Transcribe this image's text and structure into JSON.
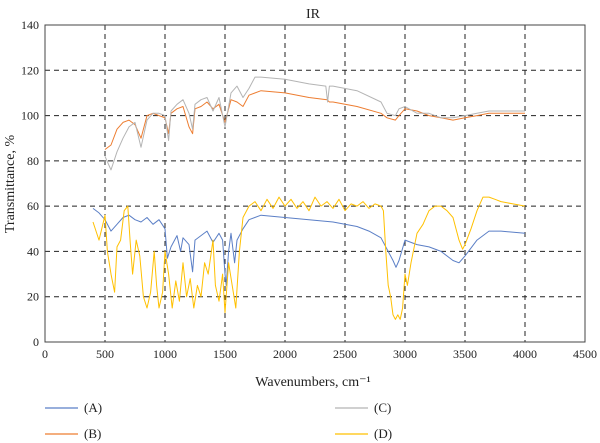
{
  "chart_data": {
    "type": "line",
    "title": "IR",
    "xlabel": "Wavenumbers, cm⁻¹",
    "ylabel": "Transmittance, %",
    "xlim": [
      0,
      4500
    ],
    "ylim": [
      0,
      140
    ],
    "xticks": [
      "0",
      "500",
      "1000",
      "1500",
      "2000",
      "2500",
      "3000",
      "3500",
      "4000",
      "4500"
    ],
    "yticks": [
      "0",
      "20",
      "40",
      "60",
      "80",
      "100",
      "120",
      "140"
    ],
    "grid": "dashed",
    "legend_position": "bottom",
    "series": [
      {
        "name": "(A)",
        "color": "#5b7fc6",
        "points": [
          [
            400,
            59
          ],
          [
            450,
            57
          ],
          [
            500,
            54
          ],
          [
            550,
            49
          ],
          [
            600,
            52
          ],
          [
            650,
            55
          ],
          [
            700,
            56
          ],
          [
            750,
            54
          ],
          [
            800,
            53
          ],
          [
            850,
            55
          ],
          [
            900,
            52
          ],
          [
            950,
            54
          ],
          [
            1000,
            50
          ],
          [
            1020,
            37
          ],
          [
            1050,
            42
          ],
          [
            1100,
            47
          ],
          [
            1130,
            40
          ],
          [
            1150,
            46
          ],
          [
            1200,
            43
          ],
          [
            1230,
            31
          ],
          [
            1250,
            45
          ],
          [
            1300,
            47
          ],
          [
            1350,
            49
          ],
          [
            1400,
            44
          ],
          [
            1450,
            48
          ],
          [
            1480,
            45
          ],
          [
            1500,
            30
          ],
          [
            1510,
            25
          ],
          [
            1530,
            40
          ],
          [
            1550,
            48
          ],
          [
            1580,
            35
          ],
          [
            1600,
            45
          ],
          [
            1650,
            50
          ],
          [
            1700,
            54
          ],
          [
            1800,
            56
          ],
          [
            2000,
            55
          ],
          [
            2200,
            54
          ],
          [
            2400,
            53
          ],
          [
            2600,
            51
          ],
          [
            2700,
            49
          ],
          [
            2800,
            46
          ],
          [
            2850,
            41
          ],
          [
            2900,
            36
          ],
          [
            2925,
            33
          ],
          [
            2950,
            36
          ],
          [
            3000,
            45
          ],
          [
            3100,
            43
          ],
          [
            3200,
            42
          ],
          [
            3300,
            40
          ],
          [
            3400,
            36
          ],
          [
            3450,
            35
          ],
          [
            3500,
            38
          ],
          [
            3600,
            45
          ],
          [
            3700,
            49
          ],
          [
            3800,
            49
          ],
          [
            4000,
            48
          ]
        ]
      },
      {
        "name": "(B)",
        "color": "#ed7d31",
        "points": [
          [
            500,
            85
          ],
          [
            550,
            87
          ],
          [
            600,
            94
          ],
          [
            650,
            97
          ],
          [
            700,
            98
          ],
          [
            750,
            96
          ],
          [
            800,
            90
          ],
          [
            850,
            100
          ],
          [
            900,
            101
          ],
          [
            950,
            100
          ],
          [
            1000,
            99
          ],
          [
            1030,
            92
          ],
          [
            1050,
            101
          ],
          [
            1100,
            103
          ],
          [
            1150,
            104
          ],
          [
            1200,
            95
          ],
          [
            1230,
            92
          ],
          [
            1250,
            103
          ],
          [
            1300,
            104
          ],
          [
            1350,
            106
          ],
          [
            1400,
            103
          ],
          [
            1450,
            105
          ],
          [
            1500,
            97
          ],
          [
            1550,
            107
          ],
          [
            1600,
            106
          ],
          [
            1650,
            104
          ],
          [
            1700,
            109
          ],
          [
            1800,
            111
          ],
          [
            2000,
            110
          ],
          [
            2200,
            108
          ],
          [
            2350,
            107
          ],
          [
            2370,
            106
          ],
          [
            2400,
            106
          ],
          [
            2600,
            104
          ],
          [
            2800,
            101
          ],
          [
            2850,
            99
          ],
          [
            2920,
            98
          ],
          [
            2950,
            100
          ],
          [
            3000,
            103
          ],
          [
            3100,
            102
          ],
          [
            3200,
            100
          ],
          [
            3300,
            99
          ],
          [
            3400,
            98
          ],
          [
            3500,
            99
          ],
          [
            3600,
            100
          ],
          [
            3700,
            101
          ],
          [
            3800,
            101
          ],
          [
            4000,
            101
          ]
        ]
      },
      {
        "name": "(C)",
        "color": "#b4b4b4",
        "points": [
          [
            500,
            82
          ],
          [
            550,
            76
          ],
          [
            600,
            84
          ],
          [
            650,
            90
          ],
          [
            700,
            95
          ],
          [
            750,
            97
          ],
          [
            800,
            86
          ],
          [
            850,
            98
          ],
          [
            900,
            101
          ],
          [
            950,
            101
          ],
          [
            1000,
            100
          ],
          [
            1030,
            89
          ],
          [
            1050,
            102
          ],
          [
            1100,
            105
          ],
          [
            1150,
            107
          ],
          [
            1200,
            101
          ],
          [
            1230,
            94
          ],
          [
            1250,
            105
          ],
          [
            1300,
            107
          ],
          [
            1350,
            108
          ],
          [
            1400,
            102
          ],
          [
            1450,
            108
          ],
          [
            1500,
            95
          ],
          [
            1550,
            110
          ],
          [
            1600,
            113
          ],
          [
            1650,
            108
          ],
          [
            1700,
            112
          ],
          [
            1750,
            117
          ],
          [
            1800,
            117
          ],
          [
            2000,
            116
          ],
          [
            2200,
            114
          ],
          [
            2340,
            113
          ],
          [
            2355,
            106
          ],
          [
            2370,
            113
          ],
          [
            2400,
            113
          ],
          [
            2600,
            111
          ],
          [
            2800,
            106
          ],
          [
            2850,
            101
          ],
          [
            2920,
            100
          ],
          [
            2950,
            103
          ],
          [
            3000,
            104
          ],
          [
            3100,
            101
          ],
          [
            3200,
            101
          ],
          [
            3300,
            99
          ],
          [
            3400,
            99
          ],
          [
            3500,
            100
          ],
          [
            3600,
            101
          ],
          [
            3700,
            102
          ],
          [
            3800,
            102
          ],
          [
            4000,
            102
          ]
        ]
      },
      {
        "name": "(D)",
        "color": "#ffc000",
        "points": [
          [
            400,
            53
          ],
          [
            450,
            45
          ],
          [
            500,
            56
          ],
          [
            520,
            40
          ],
          [
            550,
            30
          ],
          [
            580,
            22
          ],
          [
            600,
            42
          ],
          [
            630,
            45
          ],
          [
            660,
            58
          ],
          [
            690,
            60
          ],
          [
            710,
            44
          ],
          [
            730,
            30
          ],
          [
            760,
            45
          ],
          [
            790,
            38
          ],
          [
            820,
            20
          ],
          [
            850,
            15
          ],
          [
            880,
            22
          ],
          [
            910,
            40
          ],
          [
            930,
            25
          ],
          [
            950,
            15
          ],
          [
            980,
            22
          ],
          [
            1000,
            40
          ],
          [
            1030,
            30
          ],
          [
            1060,
            15
          ],
          [
            1090,
            27
          ],
          [
            1120,
            18
          ],
          [
            1150,
            35
          ],
          [
            1180,
            20
          ],
          [
            1210,
            28
          ],
          [
            1240,
            15
          ],
          [
            1270,
            25
          ],
          [
            1300,
            20
          ],
          [
            1330,
            35
          ],
          [
            1360,
            30
          ],
          [
            1400,
            45
          ],
          [
            1420,
            25
          ],
          [
            1450,
            18
          ],
          [
            1480,
            30
          ],
          [
            1500,
            13
          ],
          [
            1530,
            35
          ],
          [
            1560,
            25
          ],
          [
            1590,
            15
          ],
          [
            1620,
            40
          ],
          [
            1650,
            55
          ],
          [
            1700,
            60
          ],
          [
            1750,
            62
          ],
          [
            1800,
            58
          ],
          [
            1850,
            63
          ],
          [
            1900,
            59
          ],
          [
            1950,
            64
          ],
          [
            2000,
            60
          ],
          [
            2050,
            63
          ],
          [
            2100,
            59
          ],
          [
            2150,
            62
          ],
          [
            2200,
            58
          ],
          [
            2250,
            64
          ],
          [
            2300,
            60
          ],
          [
            2350,
            62
          ],
          [
            2400,
            59
          ],
          [
            2450,
            63
          ],
          [
            2500,
            58
          ],
          [
            2550,
            61
          ],
          [
            2600,
            60
          ],
          [
            2650,
            62
          ],
          [
            2700,
            59
          ],
          [
            2750,
            61
          ],
          [
            2800,
            60
          ],
          [
            2820,
            58
          ],
          [
            2840,
            40
          ],
          [
            2860,
            25
          ],
          [
            2880,
            20
          ],
          [
            2900,
            12
          ],
          [
            2920,
            10
          ],
          [
            2940,
            12
          ],
          [
            2960,
            10
          ],
          [
            2980,
            15
          ],
          [
            3000,
            30
          ],
          [
            3020,
            25
          ],
          [
            3050,
            35
          ],
          [
            3100,
            48
          ],
          [
            3150,
            52
          ],
          [
            3200,
            58
          ],
          [
            3250,
            60
          ],
          [
            3300,
            60
          ],
          [
            3350,
            58
          ],
          [
            3400,
            55
          ],
          [
            3450,
            45
          ],
          [
            3480,
            41
          ],
          [
            3500,
            43
          ],
          [
            3550,
            50
          ],
          [
            3600,
            58
          ],
          [
            3650,
            64
          ],
          [
            3700,
            64
          ],
          [
            3750,
            63
          ],
          [
            3800,
            62
          ],
          [
            3900,
            61
          ],
          [
            4000,
            60
          ]
        ]
      }
    ]
  }
}
